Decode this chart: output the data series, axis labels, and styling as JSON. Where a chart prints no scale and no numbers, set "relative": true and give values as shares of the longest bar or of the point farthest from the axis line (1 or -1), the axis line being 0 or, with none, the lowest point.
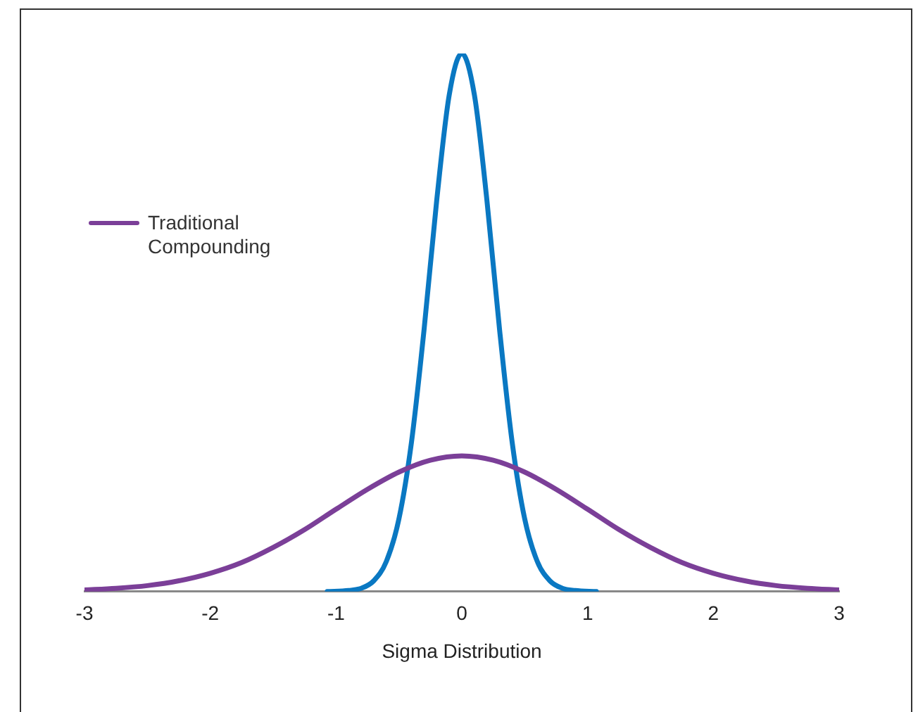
{
  "chart_data": {
    "type": "line",
    "relative": true,
    "xlabel": "Sigma Distribution",
    "xlim": [
      -3,
      3
    ],
    "xticks": [
      -3,
      -2,
      -1,
      0,
      1,
      2,
      3
    ],
    "grid": false,
    "legend": "top left",
    "marker": "none",
    "tick_labels": "x",
    "series": [
      {
        "name": "Traditional Compounding",
        "color": "#7b3f98",
        "x": [
          -3,
          -2.75,
          -2.5,
          -2.25,
          -2,
          -1.75,
          -1.5,
          -1.25,
          -1,
          -0.75,
          -0.5,
          -0.25,
          0,
          0.25,
          0.5,
          0.75,
          1,
          1.25,
          1.5,
          1.75,
          2,
          2.25,
          2.5,
          2.75,
          3
        ],
        "values": [
          0.003,
          0.006,
          0.011,
          0.02,
          0.034,
          0.054,
          0.082,
          0.115,
          0.153,
          0.19,
          0.222,
          0.244,
          0.252,
          0.244,
          0.222,
          0.19,
          0.153,
          0.115,
          0.082,
          0.054,
          0.034,
          0.02,
          0.011,
          0.006,
          0.003
        ]
      },
      {
        "color": "#0a78c2",
        "x": [
          -1.07,
          -0.9,
          -0.8,
          -0.7,
          -0.6,
          -0.5,
          -0.4,
          -0.3,
          -0.2,
          -0.1,
          0,
          0.1,
          0.2,
          0.3,
          0.4,
          0.5,
          0.6,
          0.7,
          0.8,
          0.9,
          1.07
        ],
        "values": [
          0,
          0.002,
          0.006,
          0.02,
          0.056,
          0.135,
          0.278,
          0.487,
          0.726,
          0.923,
          1,
          0.923,
          0.726,
          0.487,
          0.278,
          0.135,
          0.056,
          0.02,
          0.006,
          0.002,
          0
        ]
      }
    ]
  }
}
